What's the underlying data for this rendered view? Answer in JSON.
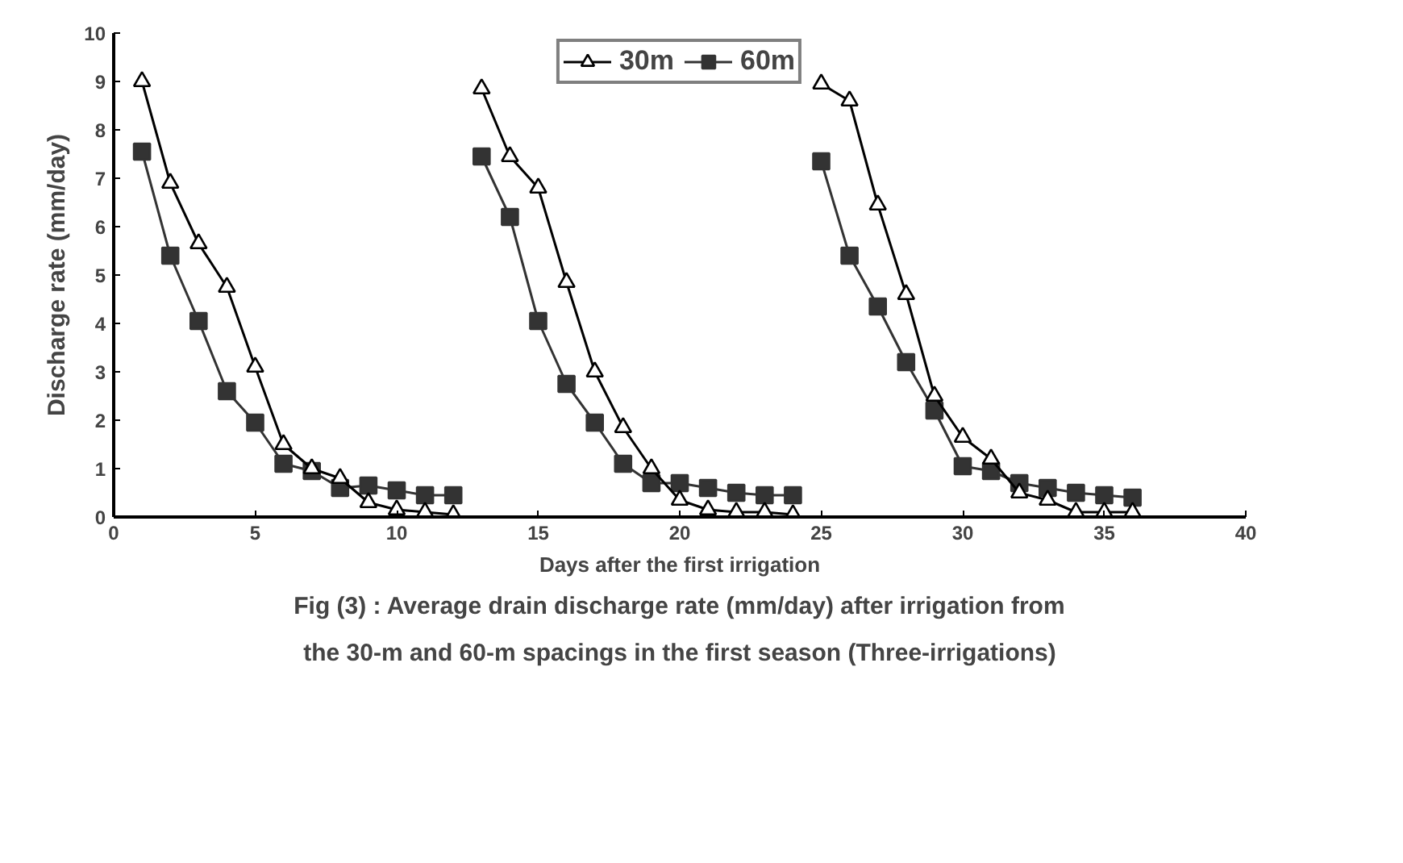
{
  "chart_data": {
    "type": "line",
    "xlabel": "Days after the first irrigation",
    "ylabel": "Discharge rate (mm/day)",
    "x": [
      1,
      2,
      3,
      4,
      5,
      6,
      7,
      8,
      9,
      10,
      11,
      12,
      12.5,
      13,
      14,
      15,
      16,
      17,
      18,
      19,
      20,
      21,
      22,
      23,
      24,
      24.5,
      25,
      26,
      27,
      28,
      29,
      30,
      31,
      32,
      33,
      34,
      35,
      36
    ],
    "series": [
      {
        "name": "30m",
        "color": "#000000",
        "marker": "triangle",
        "values": [
          9.0,
          6.9,
          5.65,
          4.75,
          3.1,
          1.5,
          1.0,
          0.8,
          0.3,
          0.15,
          0.1,
          0.05,
          null,
          8.85,
          7.45,
          6.8,
          4.85,
          3.0,
          1.85,
          1.0,
          0.35,
          0.15,
          0.1,
          0.1,
          0.05,
          null,
          8.95,
          8.6,
          6.45,
          4.6,
          2.5,
          1.65,
          1.2,
          0.5,
          0.35,
          0.1,
          0.1,
          0.1
        ]
      },
      {
        "name": "60m",
        "color": "#333333",
        "marker": "square",
        "values": [
          7.55,
          5.4,
          4.05,
          2.6,
          1.95,
          1.1,
          0.95,
          0.6,
          0.65,
          0.55,
          0.45,
          0.45,
          null,
          7.45,
          6.2,
          4.05,
          2.75,
          1.95,
          1.1,
          0.7,
          0.7,
          0.6,
          0.5,
          0.45,
          0.45,
          null,
          7.35,
          5.4,
          4.35,
          3.2,
          2.2,
          1.05,
          0.95,
          0.7,
          0.6,
          0.5,
          0.45,
          0.4
        ]
      }
    ],
    "xlim": [
      0,
      40
    ],
    "xticks": [
      0,
      5,
      10,
      15,
      20,
      25,
      30,
      35,
      40
    ],
    "ylim": [
      0,
      10
    ],
    "yticks": [
      0,
      1,
      2,
      3,
      4,
      5,
      6,
      7,
      8,
      9,
      10
    ],
    "grid": false,
    "legend": "top",
    "line_style": "solid",
    "annotations": [
      "Fig (3) : Average drain discharge rate (mm/day) after irrigation from",
      "the 30-m and 60-m spacings in the first season (Three-irrigations)"
    ]
  }
}
